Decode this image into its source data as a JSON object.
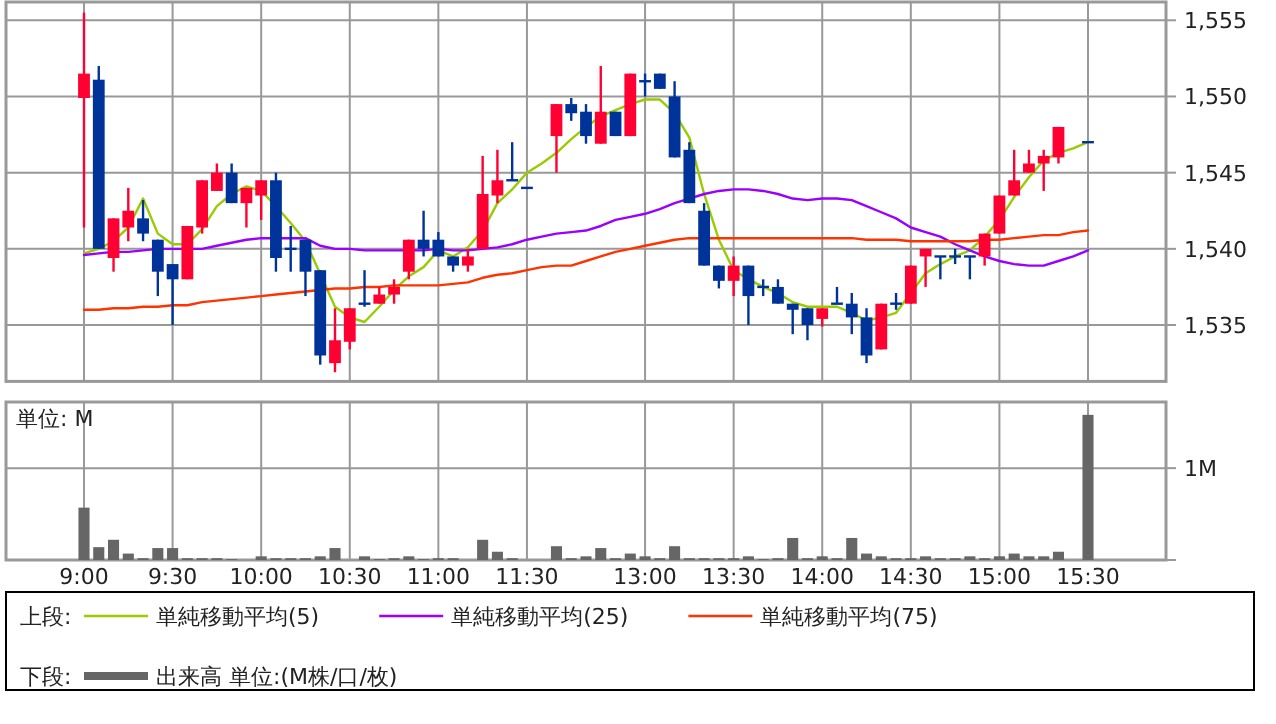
{
  "chart_data": [
    {
      "type": "candlestick",
      "legend": "bottom",
      "legend_title": "上段:",
      "grid": true,
      "tick_labels": "y",
      "categories": [
        null,
        null,
        null,
        null,
        null,
        null,
        null,
        null,
        null,
        null,
        null,
        null,
        null,
        null,
        null,
        null,
        null,
        null,
        null,
        null,
        null,
        null,
        null,
        null,
        null,
        null,
        null,
        null,
        null,
        null,
        null,
        null,
        null,
        null,
        null,
        null,
        null,
        null,
        null,
        null,
        null,
        null,
        null,
        null,
        null,
        null,
        null,
        null,
        null,
        null,
        null,
        null,
        null,
        null,
        null,
        null,
        null,
        null,
        null,
        null,
        null,
        null,
        null,
        null,
        null,
        null,
        null,
        null,
        null
      ],
      "ylim": [
        1531.3,
        1556.2
      ],
      "yticks": [
        {
          "value": 1535,
          "label": "1,535"
        },
        {
          "value": 1540,
          "label": "1,540"
        },
        {
          "value": 1545,
          "label": "1,545"
        },
        {
          "value": 1550,
          "label": "1,550"
        },
        {
          "value": 1555,
          "label": "1,555"
        }
      ],
      "ohlc": [
        [
          1549.9,
          1555.5,
          1541.4,
          1551.5
        ],
        [
          1551.1,
          1552.0,
          1540.0,
          1540.0
        ],
        [
          1539.4,
          1542.0,
          1538.5,
          1542.0
        ],
        [
          1541.4,
          1544.0,
          1540.5,
          1542.5
        ],
        [
          1542.0,
          1543.2,
          1540.5,
          1541.0
        ],
        [
          1540.6,
          1540.6,
          1536.9,
          1538.5
        ],
        [
          1539.0,
          1539.0,
          1535.0,
          1538.0
        ],
        [
          1538.0,
          1541.5,
          1538.0,
          1541.5
        ],
        [
          1541.4,
          1544.5,
          1541.0,
          1544.5
        ],
        [
          1543.8,
          1545.6,
          1543.8,
          1545.0
        ],
        [
          1545.0,
          1545.6,
          1543.0,
          1543.0
        ],
        [
          1543.0,
          1544.0,
          1541.4,
          1544.0
        ],
        [
          1543.5,
          1544.5,
          1541.9,
          1544.5
        ],
        [
          1544.5,
          1545.0,
          1538.5,
          1539.4
        ],
        [
          1540.0,
          1541.5,
          1538.5,
          1540.0
        ],
        [
          1540.6,
          1540.6,
          1536.9,
          1538.5
        ],
        [
          1538.6,
          1538.6,
          1532.4,
          1533.0
        ],
        [
          1532.5,
          1536.1,
          1531.9,
          1534.0
        ],
        [
          1533.9,
          1536.1,
          1533.4,
          1536.1
        ],
        [
          1536.4,
          1538.6,
          1536.2,
          1536.4
        ],
        [
          1536.4,
          1537.5,
          1536.4,
          1537.0
        ],
        [
          1537.0,
          1538.0,
          1536.4,
          1537.5
        ],
        [
          1538.5,
          1540.6,
          1538.0,
          1540.6
        ],
        [
          1540.6,
          1542.5,
          1539.5,
          1540.0
        ],
        [
          1540.6,
          1541.1,
          1539.5,
          1539.5
        ],
        [
          1539.5,
          1539.5,
          1538.5,
          1538.9
        ],
        [
          1538.9,
          1540.0,
          1538.5,
          1539.5
        ],
        [
          1540.0,
          1546.1,
          1540.0,
          1543.6
        ],
        [
          1543.5,
          1546.5,
          1543.0,
          1544.5
        ],
        [
          1544.5,
          1547.0,
          1544.5,
          1544.5
        ],
        [
          1544.0,
          1544.0,
          1544.0,
          1544.0
        ],
        null,
        [
          1547.4,
          1549.5,
          1545.0,
          1549.5
        ],
        [
          1549.5,
          1549.9,
          1548.4,
          1548.9
        ],
        [
          1549.0,
          1549.5,
          1546.9,
          1547.4
        ],
        [
          1546.9,
          1552.0,
          1546.9,
          1549.0
        ],
        [
          1549.0,
          1549.0,
          1547.4,
          1547.4
        ],
        [
          1547.4,
          1551.5,
          1547.4,
          1551.5
        ],
        [
          1551.0,
          1551.5,
          1550.0,
          1551.0
        ],
        [
          1551.5,
          1551.5,
          1550.5,
          1550.5
        ],
        [
          1550.0,
          1551.0,
          1546.0,
          1546.0
        ],
        [
          1546.5,
          1547.0,
          1543.0,
          1543.0
        ],
        [
          1542.5,
          1543.0,
          1538.9,
          1538.9
        ],
        [
          1538.9,
          1538.9,
          1537.4,
          1537.9
        ],
        [
          1537.9,
          1539.5,
          1536.9,
          1538.9
        ],
        [
          1538.9,
          1538.9,
          1535.0,
          1536.9
        ],
        [
          1537.5,
          1538.0,
          1536.9,
          1537.5
        ],
        [
          1537.5,
          1538.0,
          1536.4,
          1536.4
        ],
        [
          1536.4,
          1536.4,
          1534.4,
          1536.0
        ],
        [
          1536.1,
          1536.1,
          1534.0,
          1535.0
        ],
        [
          1535.4,
          1536.1,
          1534.9,
          1536.1
        ],
        [
          1536.4,
          1537.5,
          1536.4,
          1536.4
        ],
        [
          1536.4,
          1537.1,
          1534.4,
          1535.5
        ],
        [
          1535.5,
          1536.1,
          1532.5,
          1533.0
        ],
        [
          1533.4,
          1536.4,
          1533.4,
          1536.4
        ],
        [
          1536.4,
          1537.1,
          1536.0,
          1536.4
        ],
        [
          1536.4,
          1538.9,
          1536.4,
          1538.9
        ],
        [
          1539.5,
          1540.0,
          1537.5,
          1540.0
        ],
        [
          1539.5,
          1539.5,
          1538.0,
          1539.5
        ],
        [
          1539.5,
          1540.0,
          1539.0,
          1539.5
        ],
        [
          1539.5,
          1539.5,
          1538.0,
          1539.5
        ],
        [
          1539.5,
          1541.0,
          1538.9,
          1541.0
        ],
        [
          1541.0,
          1543.5,
          1541.0,
          1543.5
        ],
        [
          1543.5,
          1546.5,
          1543.5,
          1544.5
        ],
        [
          1545.0,
          1546.5,
          1545.0,
          1545.6
        ],
        [
          1545.6,
          1546.5,
          1543.8,
          1546.1
        ],
        [
          1546.0,
          1548.0,
          1545.6,
          1548.0
        ],
        null,
        [
          1547.0,
          1547.0,
          1547.0,
          1547.0
        ]
      ],
      "colors": [
        "#ff0033",
        "#003399",
        "#ff0033",
        "#ff0033",
        "#003399",
        "#003399",
        "#003399",
        "#ff0033",
        "#ff0033",
        "#ff0033",
        "#003399",
        "#ff0033",
        "#ff0033",
        "#003399",
        "#003399",
        "#003399",
        "#003399",
        "#ff0033",
        "#ff0033",
        "#003399",
        "#ff0033",
        "#ff0033",
        "#ff0033",
        "#003399",
        "#003399",
        "#003399",
        "#ff0033",
        "#ff0033",
        "#ff0033",
        "#003399",
        "#003399",
        null,
        "#ff0033",
        "#003399",
        "#003399",
        "#ff0033",
        "#003399",
        "#ff0033",
        "#003399",
        "#003399",
        "#003399",
        "#003399",
        "#003399",
        "#003399",
        "#ff0033",
        "#003399",
        "#003399",
        "#003399",
        "#003399",
        "#003399",
        "#ff0033",
        "#003399",
        "#003399",
        "#003399",
        "#ff0033",
        "#003399",
        "#ff0033",
        "#ff0033",
        "#003399",
        "#003399",
        "#003399",
        "#ff0033",
        "#ff0033",
        "#ff0033",
        "#ff0033",
        "#ff0033",
        "#ff0033",
        null,
        "#003399"
      ],
      "series": [
        {
          "name": "単純移動平均(5)",
          "type": "line",
          "color": "#99cc00",
          "values": [
            1539.7,
            1540.0,
            1540.5,
            1541.4,
            1543.3,
            1541.0,
            1540.3,
            1540.3,
            1541.3,
            1542.8,
            1543.6,
            1544.1,
            1543.8,
            1542.8,
            1541.7,
            1540.5,
            null,
            1536.2,
            1535.5,
            1535.2,
            1536.2,
            1537.3,
            1538.2,
            1538.8,
            1539.9,
            1539.5,
            1540.1,
            1541.2,
            1543.0,
            1543.9,
            1545.0,
            1545.6,
            1546.3,
            1547.2,
            1548.0,
            1548.7,
            1549.1,
            1549.5,
            1549.8,
            1549.8,
            1548.9,
            1547.3,
            1543.6,
            1540.6,
            1538.6,
            1538.0,
            1537.5,
            1537.1,
            1536.5,
            1536.2,
            1536.2,
            1536.2,
            1535.8,
            1535.3,
            1535.5,
            1535.8,
            1537.1,
            1538.4,
            1539.0,
            1539.5,
            1539.9,
            1540.8,
            1541.9,
            1543.4,
            1544.7,
            1545.8,
            1546.3,
            1546.6,
            1547.0
          ]
        },
        {
          "name": "単純移動平均(25)",
          "type": "line",
          "color": "#9900ff",
          "values": [
            1539.6,
            1539.7,
            1539.8,
            1539.8,
            1539.9,
            1540.0,
            1540.0,
            1540.0,
            1540.0,
            1540.2,
            1540.4,
            1540.6,
            1540.7,
            1540.7,
            1540.7,
            1540.7,
            1540.2,
            1540.0,
            1540.0,
            1539.9,
            1539.9,
            1539.9,
            1539.9,
            1539.9,
            1540.0,
            1539.9,
            1539.9,
            1540.0,
            1540.1,
            1540.3,
            1540.6,
            1540.8,
            1541.0,
            1541.1,
            1541.2,
            1541.5,
            1541.9,
            1542.1,
            1542.3,
            1542.6,
            1543.0,
            1543.3,
            1543.6,
            1543.8,
            1543.9,
            1543.9,
            1543.8,
            1543.6,
            1543.3,
            1543.2,
            1543.3,
            1543.3,
            1543.2,
            1542.8,
            1542.4,
            1542.0,
            1541.4,
            1541.1,
            1540.8,
            1540.3,
            1539.9,
            1539.5,
            1539.2,
            1539.0,
            1538.9,
            1538.9,
            1539.2,
            1539.5,
            1539.9
          ]
        },
        {
          "name": "単純移動平均(75)",
          "type": "line",
          "color": "#ff3300",
          "values": [
            1536.0,
            1536.0,
            1536.1,
            1536.1,
            1536.2,
            1536.2,
            1536.3,
            1536.3,
            1536.5,
            1536.6,
            1536.7,
            1536.8,
            1536.9,
            1537.0,
            1537.1,
            1537.2,
            1537.3,
            1537.4,
            1537.4,
            1537.5,
            1537.5,
            1537.6,
            1537.6,
            1537.6,
            1537.6,
            1537.7,
            1537.8,
            1538.1,
            1538.3,
            1538.4,
            1538.6,
            1538.8,
            1538.9,
            1538.9,
            1539.2,
            1539.5,
            1539.8,
            1540.0,
            1540.2,
            1540.4,
            1540.6,
            1540.7,
            1540.7,
            1540.7,
            1540.7,
            1540.7,
            1540.7,
            1540.7,
            1540.7,
            1540.7,
            1540.7,
            1540.7,
            1540.7,
            1540.6,
            1540.6,
            1540.6,
            1540.5,
            1540.5,
            1540.5,
            1540.5,
            1540.5,
            1540.6,
            1540.6,
            1540.7,
            1540.8,
            1540.9,
            1540.9,
            1541.1,
            1541.2
          ]
        }
      ]
    },
    {
      "type": "bar",
      "legend": "bottom",
      "legend_title": "下段:",
      "grid": true,
      "ylabel": "単位: M",
      "categories": [
        "9:00",
        null,
        null,
        null,
        null,
        null,
        "9:30",
        null,
        null,
        null,
        null,
        null,
        "10:00",
        null,
        null,
        null,
        null,
        null,
        "10:30",
        null,
        null,
        null,
        null,
        null,
        "11:00",
        null,
        null,
        null,
        null,
        null,
        "11:30",
        null,
        null,
        null,
        null,
        null,
        null,
        null,
        "13:00",
        null,
        null,
        null,
        null,
        null,
        "13:30",
        null,
        null,
        null,
        null,
        null,
        "14:00",
        null,
        null,
        null,
        null,
        null,
        "14:30",
        null,
        null,
        null,
        null,
        null,
        "15:00",
        null,
        null,
        null,
        null,
        null,
        "15:30"
      ],
      "ylim": [
        0,
        1.72
      ],
      "yticks": [
        {
          "value": 0,
          "label": null
        },
        {
          "value": 1,
          "label": "1M"
        }
      ],
      "series": [
        {
          "name": "出来高 単位:(M株/口/枚)",
          "color": "#666666",
          "values": [
            0.57,
            0.14,
            0.22,
            0.07,
            0.02,
            0.13,
            0.13,
            0.02,
            0.02,
            0.02,
            0.01,
            0,
            0.04,
            0.02,
            0.02,
            0.02,
            0.04,
            0.13,
            0,
            0.04,
            0.01,
            0.02,
            0.04,
            0.01,
            0.02,
            0.02,
            0,
            0.22,
            0.09,
            0.02,
            0,
            null,
            0.15,
            0.02,
            0.04,
            0.13,
            0.02,
            0.07,
            0.04,
            0.02,
            0.15,
            0.02,
            0.02,
            0.02,
            0.02,
            0.04,
            0.01,
            0.02,
            0.24,
            0.02,
            0.04,
            0.02,
            0.24,
            0.07,
            0.04,
            0.02,
            0.02,
            0.04,
            0.02,
            0.02,
            0.04,
            0.02,
            0.04,
            0.07,
            0.04,
            0.04,
            0.09,
            null,
            1.58
          ]
        }
      ]
    }
  ]
}
